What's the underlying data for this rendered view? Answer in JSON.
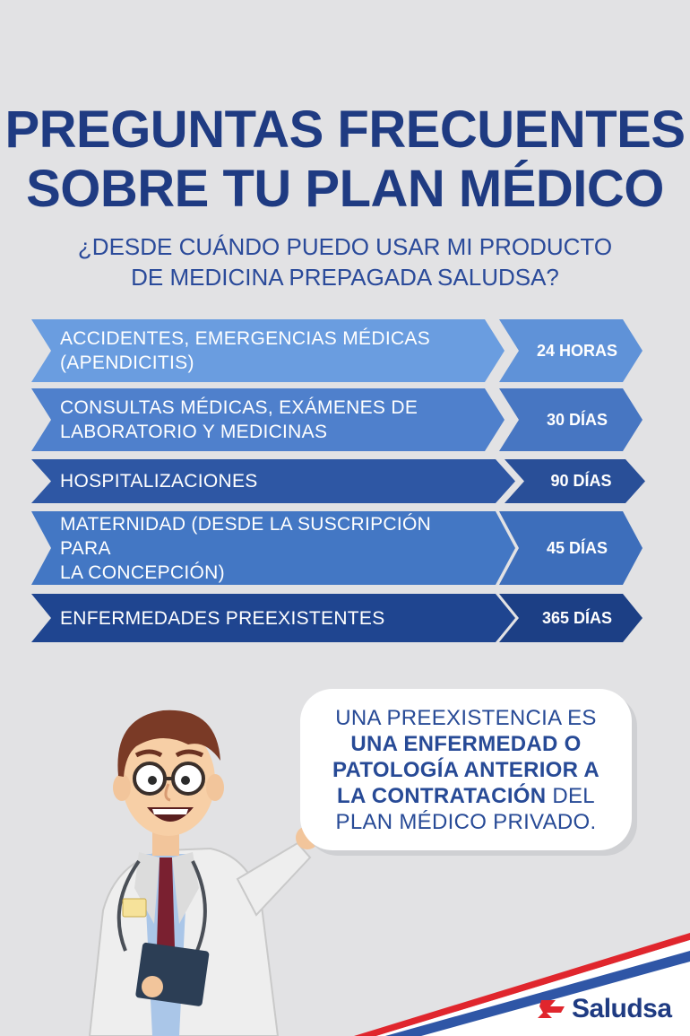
{
  "title": {
    "line1": "PREGUNTAS FRECUENTES",
    "line2": "SOBRE TU PLAN MÉDICO"
  },
  "question": {
    "line1": "¿DESDE CUÁNDO PUEDO USAR MI PRODUCTO",
    "line2": "DE MEDICINA PREPAGADA SALUDSA?"
  },
  "rows": [
    {
      "label_line1": "ACCIDENTES, EMERGENCIAS MÉDICAS",
      "label_line2": "(APENDICITIS)",
      "value": "24 HORAS"
    },
    {
      "label_line1": "CONSULTAS MÉDICAS, EXÁMENES DE",
      "label_line2": "LABORATORIO Y MEDICINAS",
      "value": "30 DÍAS"
    },
    {
      "label_line1": "HOSPITALIZACIONES",
      "label_line2": "",
      "value": "90 DÍAS"
    },
    {
      "label_line1": "MATERNIDAD (DESDE LA SUSCRIPCIÓN PARA",
      "label_line2": "LA CONCEPCIÓN)",
      "value": "45 DÍAS"
    },
    {
      "label_line1": "ENFERMEDADES PREEXISTENTES",
      "label_line2": "",
      "value": "365 DÍAS"
    }
  ],
  "bubble": {
    "line1": "UNA PREEXISTENCIA ES",
    "line2_bold": "UNA ENFERMEDAD O",
    "line3_bold": "PATOLOGÍA ANTERIOR A",
    "line4_bold": "LA CONTRATACIÓN",
    "line4_rest": " DEL",
    "line5": "PLAN MÉDICO PRIVADO."
  },
  "logo": {
    "text": "Saludsa",
    "colors": {
      "red": "#e0262d",
      "blue": "#1f3b82"
    }
  },
  "colors": {
    "background": "#e2e2e4",
    "title": "#1f3b82"
  }
}
